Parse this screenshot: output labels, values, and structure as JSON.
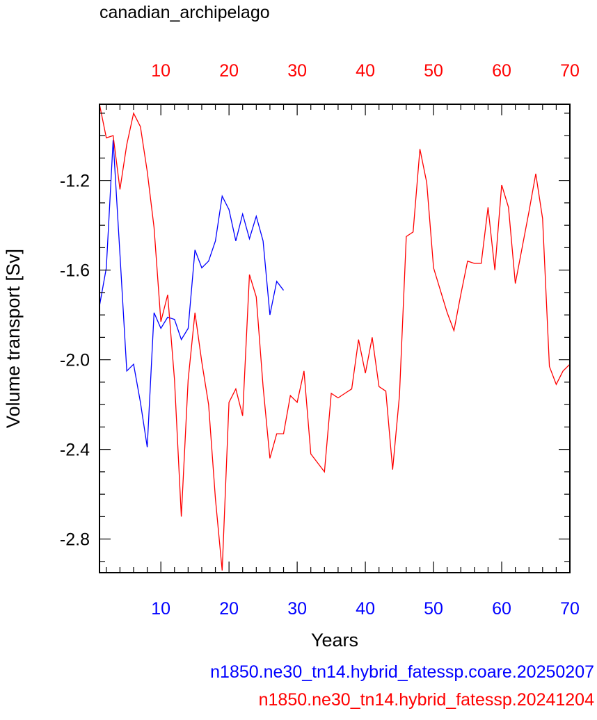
{
  "chart_data": {
    "type": "line",
    "title": "canadian_archipelago",
    "xlabel": "Years",
    "ylabel": "Volume transport [Sv]",
    "y_ticks": [
      -1.2,
      -1.6,
      -2.0,
      -2.4,
      -2.8
    ],
    "bottom_x_ticks": [
      10,
      20,
      30,
      40,
      50,
      60,
      70
    ],
    "top_x_ticks": [
      10,
      20,
      30,
      40,
      50,
      60,
      70
    ],
    "bottom_axis_color": "#0000ff",
    "top_axis_color": "#ff0000",
    "series": [
      {
        "name": "n1850.ne30_tn14.hybrid_fatessp.coare.20250207",
        "color": "#0000ff",
        "axis": "bottom",
        "x": [
          1,
          2,
          3,
          4,
          5,
          6,
          7,
          8,
          9,
          10,
          11,
          12,
          13,
          14,
          15,
          16,
          17,
          18,
          19,
          20,
          21,
          22,
          23,
          24,
          25,
          26,
          27,
          28
        ],
        "values": [
          -1.76,
          -1.59,
          -1.02,
          -1.53,
          -2.05,
          -2.02,
          -2.19,
          -2.39,
          -1.79,
          -1.86,
          -1.81,
          -1.82,
          -1.91,
          -1.86,
          -1.51,
          -1.59,
          -1.56,
          -1.47,
          -1.27,
          -1.33,
          -1.47,
          -1.35,
          -1.46,
          -1.36,
          -1.47,
          -1.8,
          -1.65,
          -1.69
        ]
      },
      {
        "name": "n1850.ne30_tn14.hybrid_fatessp.20241204",
        "color": "#ff0000",
        "axis": "top",
        "x": [
          1,
          2,
          3,
          4,
          5,
          6,
          7,
          8,
          9,
          10,
          11,
          12,
          13,
          14,
          15,
          16,
          17,
          18,
          19,
          20,
          21,
          22,
          23,
          24,
          25,
          26,
          27,
          28,
          29,
          30,
          31,
          32,
          33,
          34,
          35,
          36,
          37,
          38,
          39,
          40,
          41,
          42,
          43,
          44,
          45,
          46,
          47,
          48,
          49,
          50,
          51,
          52,
          53,
          54,
          55,
          56,
          57,
          58,
          59,
          60,
          61,
          62,
          63,
          64,
          65,
          66,
          67,
          68,
          69,
          70
        ],
        "values": [
          -0.86,
          -1.01,
          -1.0,
          -1.24,
          -1.04,
          -0.9,
          -0.96,
          -1.16,
          -1.41,
          -1.83,
          -1.71,
          -2.09,
          -2.7,
          -2.09,
          -1.79,
          -2.01,
          -2.2,
          -2.62,
          -2.94,
          -2.19,
          -2.13,
          -2.25,
          -1.62,
          -1.72,
          -2.12,
          -2.44,
          -2.33,
          -2.33,
          -2.16,
          -2.19,
          -2.05,
          -2.42,
          -2.46,
          -2.5,
          -2.15,
          -2.17,
          -2.15,
          -2.13,
          -1.91,
          -2.06,
          -1.9,
          -2.12,
          -2.14,
          -2.49,
          -2.16,
          -1.45,
          -1.43,
          -1.06,
          -1.21,
          -1.59,
          -1.69,
          -1.79,
          -1.87,
          -1.71,
          -1.56,
          -1.57,
          -1.57,
          -1.32,
          -1.6,
          -1.22,
          -1.32,
          -1.66,
          -1.5,
          -1.34,
          -1.17,
          -1.37,
          -2.03,
          -2.11,
          -2.05,
          -2.02
        ]
      }
    ]
  }
}
